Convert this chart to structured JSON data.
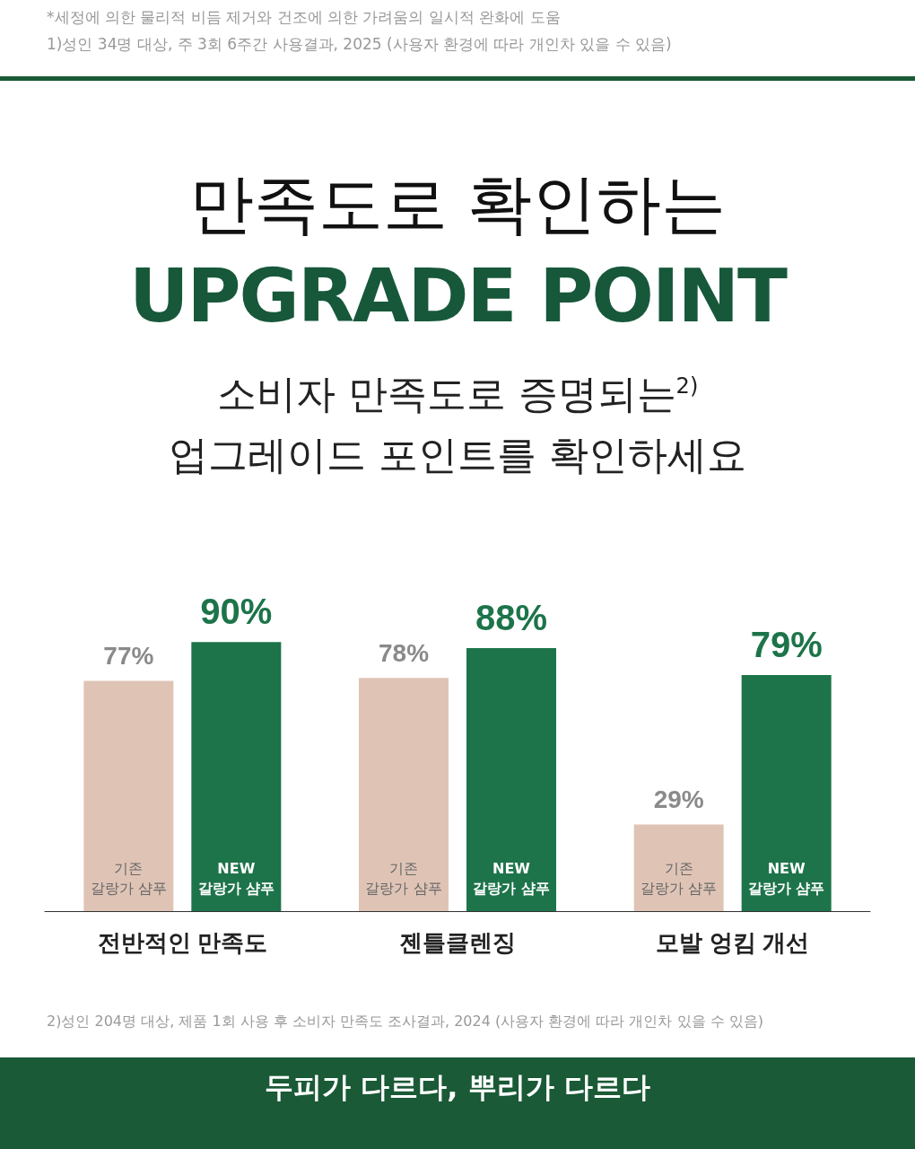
{
  "chart_data": {
    "type": "bar",
    "title": "만족도로 확인하는",
    "subtitle": "UPGRADE POINT",
    "annotations": [
      "*세정에 의한 물리적 비듬 제거와 건조에 의한 가려움의 일시적 완화에 도움",
      "1)성인 34명 대상, 주 3회 6주간 사용결과, 2025 (사용자 환경에 따라 개인차 있을 수 있음)",
      "소비자 만족도로 증명되는$^{2)}$",
      "업그레이드 포인트를 확인하세요",
      "2)성인 204명 대상, 제품 1회 사용 후 소비자 만족도 조사결과, 2024 (사용자 환경에 따라 개인차 있을 수 있음)",
      "두피가 다르다, 뿌리가 다르다"
    ],
    "categories": [
      "전반적인 만족도",
      "젠틀클렌징",
      "모발 엉킴 개선"
    ],
    "series": [
      {
        "name": "기존 갈랑가 샴푸",
        "color": "#dfc4b6",
        "values": [
          77,
          78,
          29
        ],
        "value_labels": [
          "77%",
          "78%",
          "29%"
        ]
      },
      {
        "name": "NEW 갈랑가 샴푸",
        "color": "#1d744a",
        "values": [
          90,
          88,
          79
        ],
        "value_labels": [
          "90%",
          "88%",
          "79%"
        ]
      }
    ],
    "legend": false,
    "grid": false
  }
}
